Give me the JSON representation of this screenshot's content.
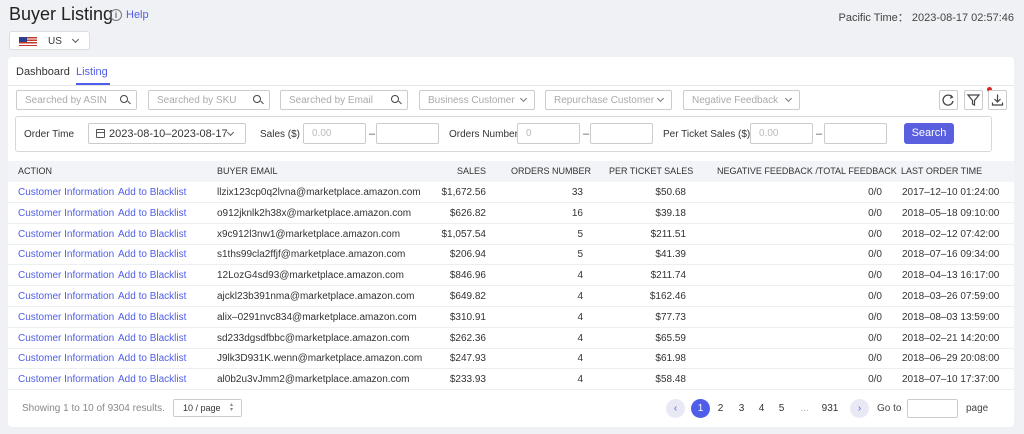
{
  "header": {
    "title": "Buyer Listing",
    "info_icon": "i",
    "help": "Help",
    "pacific_time": "Pacific Time： 2023-08-17 02:57:46"
  },
  "country": {
    "label": "US",
    "flag": "us-flag-icon"
  },
  "tabs": [
    {
      "label": "Dashboard",
      "active": false
    },
    {
      "label": "Listing",
      "active": true
    }
  ],
  "search": {
    "asin_placeholder": "Searched by ASIN",
    "sku_placeholder": "Searched by SKU",
    "email_placeholder": "Searched by Email"
  },
  "selects": {
    "business_customer": "Business Customer",
    "repurchase_customer": "Repurchase Customer",
    "negative_feedback": "Negative Feedback"
  },
  "toolbar_icons": [
    "refresh-icon",
    "filter-icon",
    "download-icon"
  ],
  "filters": {
    "order_time_label": "Order Time",
    "date_range": "2023-08-10–2023-08-17",
    "sales_label": "Sales ($)",
    "sales_min_placeholder": "0.00",
    "orders_label": "Orders Number",
    "orders_min_placeholder": "0",
    "per_ticket_label": "Per Ticket Sales ($)",
    "per_ticket_min_placeholder": "0.00",
    "dash": "–",
    "search_button": "Search"
  },
  "table": {
    "columns": [
      "ACTION",
      "BUYER EMAIL",
      "SALES",
      "ORDERS NUMBER",
      "PER TICKET SALES",
      "NEGATIVE FEEDBACK /TOTAL FEEDBACK",
      "LAST ORDER TIME"
    ],
    "action_links": [
      "Customer Information",
      "Add to Blacklist"
    ],
    "rows": [
      {
        "email": "llzix123cp0q2lvna@marketplace.amazon.com",
        "sales": "$1,672.56",
        "orders": "33",
        "per_ticket": "$50.68",
        "feedback": "0/0",
        "last_order": "2017–12–10 01:24:00"
      },
      {
        "email": "o912jknlk2h38x@marketplace.amazon.com",
        "sales": "$626.82",
        "orders": "16",
        "per_ticket": "$39.18",
        "feedback": "0/0",
        "last_order": "2018–05–18 09:10:00"
      },
      {
        "email": "x9c912l3nw1@marketplace.amazon.com",
        "sales": "$1,057.54",
        "orders": "5",
        "per_ticket": "$211.51",
        "feedback": "0/0",
        "last_order": "2018–02–12 07:42:00"
      },
      {
        "email": "s1ths99cla2ffjf@marketplace.amazon.com",
        "sales": "$206.94",
        "orders": "5",
        "per_ticket": "$41.39",
        "feedback": "0/0",
        "last_order": "2018–07–16 09:34:00"
      },
      {
        "email": "12LozG4sd93@marketplace.amazon.com",
        "sales": "$846.96",
        "orders": "4",
        "per_ticket": "$211.74",
        "feedback": "0/0",
        "last_order": "2018–04–13 16:17:00"
      },
      {
        "email": "ajckl23b391nma@marketplace.amazon.com",
        "sales": "$649.82",
        "orders": "4",
        "per_ticket": "$162.46",
        "feedback": "0/0",
        "last_order": "2018–03–26 07:59:00"
      },
      {
        "email": "alix–0291nvc834@marketplace.amazon.com",
        "sales": "$310.91",
        "orders": "4",
        "per_ticket": "$77.73",
        "feedback": "0/0",
        "last_order": "2018–08–03 13:59:00"
      },
      {
        "email": "sd233dgsdfbbc@marketplace.amazon.com",
        "sales": "$262.36",
        "orders": "4",
        "per_ticket": "$65.59",
        "feedback": "0/0",
        "last_order": "2018–02–21 14:20:00"
      },
      {
        "email": "J9lk3D931K.wenn@marketplace.amazon.com",
        "sales": "$247.93",
        "orders": "4",
        "per_ticket": "$61.98",
        "feedback": "0/0",
        "last_order": "2018–06–29 20:08:00"
      },
      {
        "email": "al0b2u3vJmm2@marketplace.amazon.com",
        "sales": "$233.93",
        "orders": "4",
        "per_ticket": "$58.48",
        "feedback": "0/0",
        "last_order": "2018–07–10 17:37:00"
      }
    ]
  },
  "pagination": {
    "showing": "Showing 1 to 10 of 9304 results.",
    "page_size": "10 / page",
    "prev": "‹",
    "next": "›",
    "pages": [
      "1",
      "2",
      "3",
      "4",
      "5",
      "...",
      "931"
    ],
    "current": "1",
    "goto_label": "Go to",
    "page_label": "page"
  },
  "colors": {
    "accent": "#4f5ee8",
    "button": "#5a5fe0",
    "notification_dot": "#e02020"
  }
}
